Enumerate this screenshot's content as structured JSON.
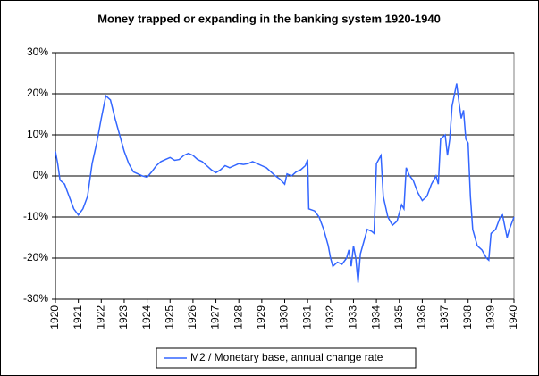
{
  "chart_data": {
    "type": "line",
    "title": "Money trapped or expanding in the banking system 1920-1940",
    "xlim": [
      1920,
      1940
    ],
    "xticks": [
      1920,
      1921,
      1922,
      1923,
      1924,
      1925,
      1926,
      1927,
      1928,
      1929,
      1930,
      1931,
      1932,
      1933,
      1934,
      1935,
      1936,
      1937,
      1938,
      1939,
      1940
    ],
    "ylim": [
      -30,
      30
    ],
    "yticks": [
      {
        "value": -30,
        "label": "-30%"
      },
      {
        "value": -20,
        "label": "-20%"
      },
      {
        "value": -10,
        "label": "-10%"
      },
      {
        "value": 0,
        "label": "0%"
      },
      {
        "value": 10,
        "label": "10%"
      },
      {
        "value": 20,
        "label": "20%"
      },
      {
        "value": 30,
        "label": "30%"
      }
    ],
    "grid": true,
    "legend": "bottom",
    "x": [
      1920.0,
      1920.1,
      1920.2,
      1920.4,
      1920.6,
      1920.8,
      1921.0,
      1921.2,
      1921.4,
      1921.6,
      1921.8,
      1922.0,
      1922.2,
      1922.4,
      1922.6,
      1922.8,
      1923.0,
      1923.2,
      1923.4,
      1923.6,
      1923.8,
      1924.0,
      1924.2,
      1924.4,
      1924.6,
      1924.8,
      1925.0,
      1925.2,
      1925.4,
      1925.6,
      1925.8,
      1926.0,
      1926.2,
      1926.4,
      1926.6,
      1926.8,
      1927.0,
      1927.2,
      1927.4,
      1927.6,
      1927.8,
      1928.0,
      1928.2,
      1928.4,
      1928.6,
      1928.8,
      1929.0,
      1929.2,
      1929.4,
      1929.6,
      1929.8,
      1930.0,
      1930.1,
      1930.3,
      1930.5,
      1930.7,
      1930.9,
      1931.0,
      1931.05,
      1931.3,
      1931.5,
      1931.7,
      1931.9,
      1932.0,
      1932.1,
      1932.3,
      1932.5,
      1932.7,
      1932.8,
      1932.9,
      1933.0,
      1933.1,
      1933.2,
      1933.3,
      1933.5,
      1933.6,
      1933.8,
      1933.9,
      1934.0,
      1934.2,
      1934.3,
      1934.5,
      1934.7,
      1934.9,
      1935.1,
      1935.2,
      1935.3,
      1935.45,
      1935.6,
      1935.8,
      1936.0,
      1936.2,
      1936.4,
      1936.6,
      1936.7,
      1936.8,
      1937.0,
      1937.1,
      1937.2,
      1937.3,
      1937.5,
      1937.6,
      1937.7,
      1937.8,
      1937.9,
      1938.0,
      1938.1,
      1938.2,
      1938.4,
      1938.6,
      1938.8,
      1938.9,
      1939.0,
      1939.2,
      1939.4,
      1939.5,
      1939.7,
      1939.8,
      1940.0
    ],
    "series": [
      {
        "name": "M2 / Monetary base, annual change rate",
        "color": "#3366ff",
        "values": [
          6,
          3,
          -1,
          -2,
          -5,
          -8,
          -9.5,
          -8,
          -5,
          3,
          8,
          14,
          19.5,
          18.5,
          14,
          10,
          6,
          3,
          1,
          0.5,
          0,
          -0.3,
          1,
          2.5,
          3.5,
          4,
          4.5,
          3.8,
          4,
          5,
          5.5,
          5,
          4,
          3.5,
          2.5,
          1.5,
          0.8,
          1.5,
          2.5,
          2,
          2.5,
          3,
          2.8,
          3,
          3.5,
          3,
          2.5,
          2,
          1,
          0,
          -0.8,
          -2,
          0.5,
          0,
          1,
          1.5,
          2.5,
          4,
          -8,
          -8.5,
          -10,
          -13,
          -17,
          -20,
          -22,
          -21,
          -21.5,
          -20,
          -18,
          -22,
          -17,
          -20,
          -26,
          -19,
          -15,
          -13,
          -13.5,
          -14,
          3,
          5,
          -5,
          -10,
          -12,
          -11,
          -7,
          -8,
          2,
          0,
          -1,
          -4,
          -6,
          -5,
          -2,
          0,
          -2,
          9,
          10,
          5,
          9,
          17,
          22.5,
          18,
          14,
          16,
          9,
          8,
          -5,
          -13,
          -17,
          -18,
          -20,
          -20.5,
          -14,
          -13,
          -10,
          -9.5,
          -15,
          -13,
          -10
        ]
      }
    ]
  }
}
